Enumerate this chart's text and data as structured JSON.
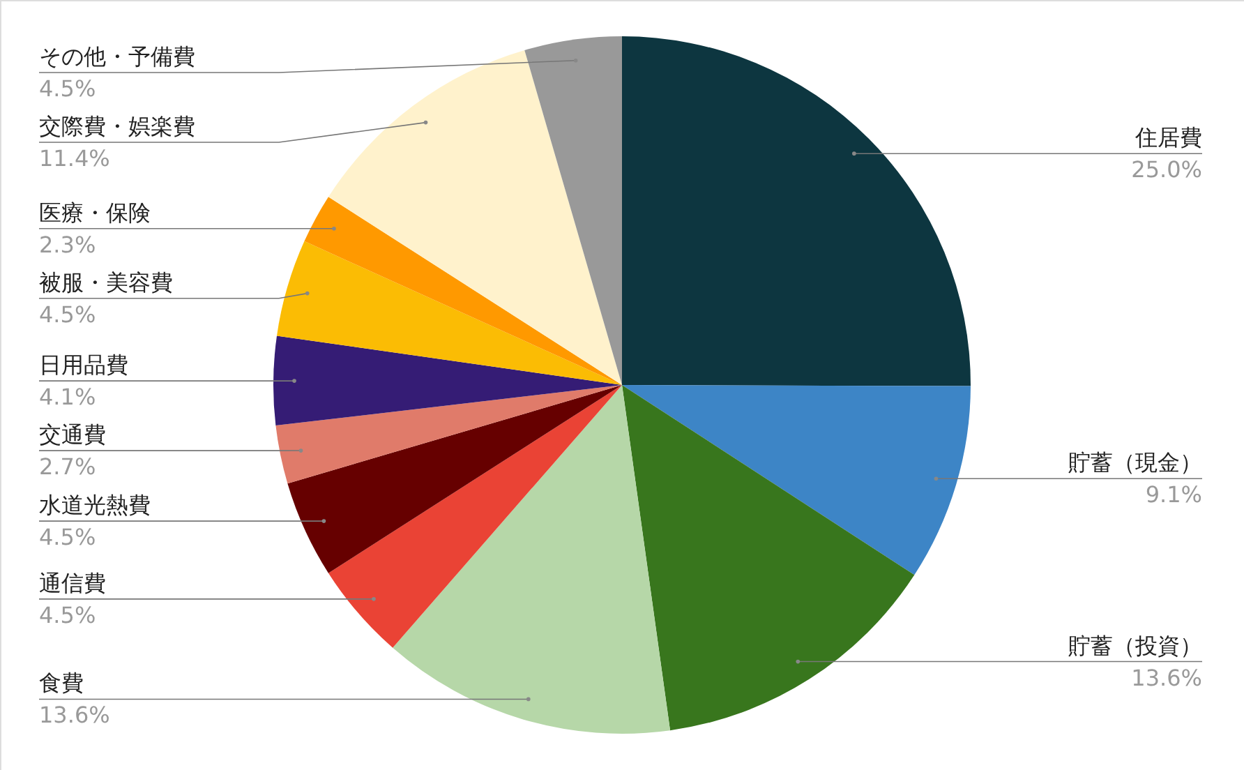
{
  "chart_data": {
    "type": "pie",
    "categories": [
      "住居費",
      "貯蓄（現金）",
      "貯蓄（投資）",
      "食費",
      "通信費",
      "水道光熱費",
      "交通費",
      "日用品費",
      "被服・美容費",
      "医療・保険",
      "交際費・娯楽費",
      "その他・予備費"
    ],
    "values": [
      25.0,
      9.1,
      13.6,
      13.6,
      4.5,
      4.5,
      2.7,
      4.1,
      4.5,
      2.3,
      11.4,
      4.5
    ],
    "value_labels": [
      "25.0%",
      "9.1%",
      "13.6%",
      "13.6%",
      "4.5%",
      "4.5%",
      "2.7%",
      "4.1%",
      "4.5%",
      "2.3%",
      "11.4%",
      "4.5%"
    ],
    "colors": [
      "#0d3640",
      "#3d85c6",
      "#38761d",
      "#b6d7a8",
      "#ea4335",
      "#660000",
      "#e07b6a",
      "#351c75",
      "#fbbc04",
      "#ff9900",
      "#fff2cc",
      "#999999"
    ]
  }
}
